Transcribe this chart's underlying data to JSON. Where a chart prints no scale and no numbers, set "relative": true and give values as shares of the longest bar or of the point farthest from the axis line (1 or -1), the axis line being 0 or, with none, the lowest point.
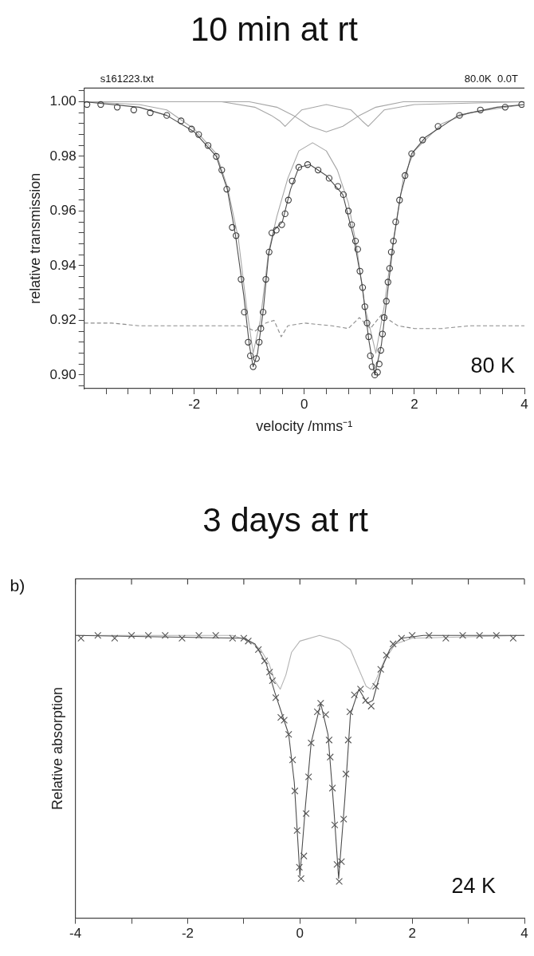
{
  "chart_data": [
    {
      "type": "scatter",
      "title": "10 min at rt",
      "xlabel": "velocity /mms⁻¹",
      "ylabel": "relative transmission",
      "annotations": [
        "s161223.txt",
        "80.0K  0.0T",
        "80 K"
      ],
      "xlim": [
        -4,
        4
      ],
      "ylim": [
        0.895,
        1.005
      ],
      "xticks": [
        {
          "value": -3.6,
          "label": null
        },
        {
          "value": -3.2,
          "label": null
        },
        {
          "value": -2.8,
          "label": null
        },
        {
          "value": -2.4,
          "label": null
        },
        -2,
        {
          "value": -1.6,
          "label": null
        },
        {
          "value": -1.2,
          "label": null
        },
        {
          "value": -0.8,
          "label": null
        },
        {
          "value": -0.4,
          "label": null
        },
        0,
        {
          "value": 0.4,
          "label": null
        },
        {
          "value": 0.8,
          "label": null
        },
        {
          "value": 1.2,
          "label": null
        },
        {
          "value": 1.6,
          "label": null
        },
        2,
        {
          "value": 2.4,
          "label": null
        },
        {
          "value": 2.8,
          "label": null
        },
        {
          "value": 3.2,
          "label": null
        },
        {
          "value": 3.6,
          "label": null
        },
        4
      ],
      "yticks": [
        {
          "value": 0.896,
          "label": null
        },
        {
          "value": 0.9,
          "label": "0.90"
        },
        {
          "value": 0.904,
          "label": null
        },
        {
          "value": 0.908,
          "label": null
        },
        {
          "value": 0.912,
          "label": null
        },
        {
          "value": 0.916,
          "label": null
        },
        {
          "value": 0.92,
          "label": "0.92"
        },
        {
          "value": 0.924,
          "label": null
        },
        {
          "value": 0.928,
          "label": null
        },
        {
          "value": 0.932,
          "label": null
        },
        {
          "value": 0.936,
          "label": null
        },
        {
          "value": 0.94,
          "label": "0.94"
        },
        {
          "value": 0.944,
          "label": null
        },
        {
          "value": 0.948,
          "label": null
        },
        {
          "value": 0.952,
          "label": null
        },
        {
          "value": 0.956,
          "label": null
        },
        {
          "value": 0.96,
          "label": "0.96"
        },
        {
          "value": 0.964,
          "label": null
        },
        {
          "value": 0.968,
          "label": null
        },
        {
          "value": 0.972,
          "label": null
        },
        {
          "value": 0.976,
          "label": null
        },
        {
          "value": 0.98,
          "label": "0.98"
        },
        {
          "value": 0.984,
          "label": null
        },
        {
          "value": 0.988,
          "label": null
        },
        {
          "value": 0.992,
          "label": null
        },
        {
          "value": 0.996,
          "label": null
        },
        {
          "value": 1,
          "label": "1.00"
        },
        {
          "value": 1.004,
          "label": null
        }
      ],
      "series": [
        {
          "type": "line",
          "color": "#a6a6a6",
          "x": [
            -4,
            -3,
            -2.5,
            -2,
            -1.6,
            -1.4,
            -1.2,
            -1.05,
            -0.93,
            -0.8,
            -0.65,
            -0.5,
            -0.3,
            -0.1,
            0.15,
            0.4,
            0.6,
            0.8,
            0.95,
            1.1,
            1.3,
            1.45,
            1.6,
            1.8,
            2,
            2.5,
            3,
            4
          ],
          "values": [
            1,
            0.999,
            0.997,
            0.99,
            0.981,
            0.969,
            0.95,
            0.925,
            0.908,
            0.92,
            0.945,
            0.958,
            0.972,
            0.982,
            0.985,
            0.982,
            0.975,
            0.963,
            0.947,
            0.925,
            0.908,
            0.925,
            0.947,
            0.972,
            0.982,
            0.992,
            0.996,
            0.999
          ]
        },
        {
          "type": "line",
          "color": "#a6a6a6",
          "x": [
            -4,
            -1.5,
            -0.9,
            -0.6,
            -0.45,
            -0.35,
            -0.25,
            -0.05,
            0.4,
            0.85,
            1.05,
            1.16,
            1.26,
            1.45,
            2,
            4
          ],
          "values": [
            1,
            1,
            0.998,
            0.995,
            0.993,
            0.991,
            0.993,
            0.997,
            0.999,
            0.997,
            0.993,
            0.991,
            0.993,
            0.997,
            0.999,
            1
          ]
        },
        {
          "type": "line",
          "color": "#a6a6a6",
          "x": [
            -4,
            -1,
            -0.5,
            -0.2,
            0.1,
            0.4,
            0.7,
            1,
            1.3,
            1.8,
            4
          ],
          "values": [
            1,
            1,
            0.998,
            0.995,
            0.991,
            0.989,
            0.991,
            0.995,
            0.998,
            1,
            1
          ]
        },
        {
          "type": "line",
          "color": "#8c8c8c",
          "line_style": "dashed",
          "x": [
            -4,
            -3.5,
            -3,
            -2.5,
            -2,
            -1.5,
            -1.1,
            -0.9,
            -0.7,
            -0.55,
            -0.42,
            -0.3,
            0,
            0.5,
            0.8,
            1,
            1.2,
            1.4,
            1.7,
            2,
            2.5,
            3,
            3.5,
            4
          ],
          "values": [
            0.919,
            0.919,
            0.918,
            0.918,
            0.918,
            0.918,
            0.918,
            0.916,
            0.919,
            0.92,
            0.914,
            0.918,
            0.919,
            0.918,
            0.917,
            0.921,
            0.917,
            0.922,
            0.918,
            0.917,
            0.917,
            0.918,
            0.918,
            0.918
          ]
        },
        {
          "type": "line",
          "color": "#4d4d4d",
          "x": [
            -4,
            -3,
            -2.5,
            -2,
            -1.6,
            -1.4,
            -1.25,
            -1.1,
            -1,
            -0.93,
            -0.85,
            -0.75,
            -0.65,
            -0.55,
            -0.4,
            -0.25,
            -0.1,
            0.1,
            0.4,
            0.7,
            0.9,
            1.05,
            1.17,
            1.28,
            1.4,
            1.5,
            1.62,
            1.75,
            1.95,
            2.2,
            2.8,
            3.5,
            4
          ],
          "values": [
            1,
            0.998,
            0.995,
            0.989,
            0.98,
            0.968,
            0.951,
            0.929,
            0.911,
            0.903,
            0.908,
            0.923,
            0.944,
            0.953,
            0.956,
            0.968,
            0.976,
            0.977,
            0.973,
            0.966,
            0.95,
            0.933,
            0.913,
            0.9,
            0.911,
            0.928,
            0.949,
            0.966,
            0.981,
            0.987,
            0.995,
            0.998,
            0.999
          ]
        },
        {
          "type": "scatter",
          "marker": "circle",
          "color": "#3a3a3a",
          "x": [
            -3.95,
            -3.7,
            -3.4,
            -3.1,
            -2.8,
            -2.5,
            -2.24,
            -2.05,
            -1.92,
            -1.75,
            -1.6,
            -1.5,
            -1.41,
            -1.31,
            -1.24,
            -1.15,
            -1.09,
            -1.02,
            -0.98,
            -0.93,
            -0.87,
            -0.82,
            -0.79,
            -0.75,
            -0.7,
            -0.64,
            -0.59,
            -0.51,
            -0.41,
            -0.35,
            -0.29,
            -0.22,
            -0.1,
            0.06,
            0.25,
            0.45,
            0.61,
            0.71,
            0.8,
            0.86,
            0.93,
            0.97,
            1.01,
            1.06,
            1.1,
            1.14,
            1.17,
            1.2,
            1.23,
            1.28,
            1.33,
            1.36,
            1.39,
            1.42,
            1.45,
            1.49,
            1.52,
            1.55,
            1.58,
            1.62,
            1.66,
            1.73,
            1.83,
            1.95,
            2.15,
            2.43,
            2.82,
            3.2,
            3.65,
            3.95
          ],
          "values": [
            0.999,
            0.999,
            0.998,
            0.997,
            0.996,
            0.995,
            0.993,
            0.99,
            0.988,
            0.984,
            0.98,
            0.975,
            0.968,
            0.954,
            0.951,
            0.935,
            0.923,
            0.912,
            0.907,
            0.903,
            0.906,
            0.912,
            0.917,
            0.923,
            0.935,
            0.945,
            0.952,
            0.953,
            0.955,
            0.959,
            0.964,
            0.971,
            0.976,
            0.977,
            0.975,
            0.972,
            0.969,
            0.966,
            0.96,
            0.955,
            0.949,
            0.946,
            0.938,
            0.932,
            0.925,
            0.919,
            0.914,
            0.907,
            0.903,
            0.9,
            0.901,
            0.904,
            0.909,
            0.915,
            0.921,
            0.927,
            0.934,
            0.939,
            0.945,
            0.949,
            0.956,
            0.964,
            0.973,
            0.981,
            0.986,
            0.991,
            0.995,
            0.997,
            0.998,
            0.999
          ]
        }
      ]
    },
    {
      "type": "scatter",
      "title": "3 days at rt",
      "ylabel": "Relative absorption",
      "relative": true,
      "tick_labels": "x",
      "annotations": [
        "b)",
        "24 K"
      ],
      "xlim": [
        -4,
        4
      ],
      "xticks": [
        -4,
        {
          "value": -3,
          "label": null
        },
        -2,
        {
          "value": -1,
          "label": null
        },
        0,
        {
          "value": 1,
          "label": null
        },
        2,
        {
          "value": 3,
          "label": null
        },
        4
      ],
      "series": [
        {
          "type": "line",
          "color": "#b3b3b3",
          "x": [
            -4,
            -1.2,
            -0.9,
            -0.7,
            -0.55,
            -0.45,
            -0.35,
            -0.25,
            -0.15,
            0,
            0.35,
            0.7,
            0.9,
            1.05,
            1.18,
            1.26,
            1.35,
            1.5,
            1.7,
            2,
            4
          ],
          "values": [
            1,
            1,
            0.98,
            0.95,
            0.9,
            0.84,
            0.81,
            0.86,
            0.94,
            0.98,
            1,
            0.98,
            0.95,
            0.88,
            0.82,
            0.81,
            0.84,
            0.91,
            0.97,
            0.99,
            1
          ]
        },
        {
          "type": "line",
          "color": "#4d4d4d",
          "x": [
            -4,
            -1,
            -0.8,
            -0.6,
            -0.45,
            -0.3,
            -0.2,
            -0.1,
            0,
            0.1,
            0.2,
            0.37,
            0.5,
            0.6,
            0.69,
            0.8,
            0.9,
            1.05,
            1.2,
            1.3,
            1.45,
            1.6,
            1.8,
            2.2,
            4
          ],
          "values": [
            1,
            0.99,
            0.97,
            0.9,
            0.8,
            0.71,
            0.65,
            0.48,
            0.15,
            0.4,
            0.62,
            0.76,
            0.65,
            0.4,
            0.14,
            0.42,
            0.72,
            0.81,
            0.76,
            0.77,
            0.88,
            0.95,
            0.99,
            1,
            1
          ]
        },
        {
          "type": "scatter",
          "marker": "cross",
          "color": "#555555",
          "x": [
            -3.9,
            -3.6,
            -3.3,
            -3,
            -2.7,
            -2.4,
            -2.1,
            -1.8,
            -1.5,
            -1.2,
            -1,
            -0.92,
            -0.74,
            -0.63,
            -0.54,
            -0.49,
            -0.43,
            -0.34,
            -0.28,
            -0.2,
            -0.13,
            -0.09,
            -0.05,
            -0.01,
            0.02,
            0.07,
            0.11,
            0.155,
            0.2,
            0.31,
            0.37,
            0.46,
            0.52,
            0.54,
            0.58,
            0.62,
            0.66,
            0.7,
            0.74,
            0.78,
            0.82,
            0.86,
            0.89,
            0.97,
            1.08,
            1.17,
            1.27,
            1.35,
            1.44,
            1.54,
            1.66,
            1.81,
            2,
            2.3,
            2.6,
            2.9,
            3.2,
            3.5,
            3.8
          ],
          "values": [
            0.99,
            1,
            0.99,
            1,
            1,
            1,
            0.99,
            1,
            1,
            0.99,
            0.99,
            0.98,
            0.95,
            0.91,
            0.87,
            0.84,
            0.78,
            0.71,
            0.7,
            0.65,
            0.56,
            0.45,
            0.31,
            0.18,
            0.14,
            0.22,
            0.37,
            0.5,
            0.62,
            0.73,
            0.76,
            0.72,
            0.63,
            0.57,
            0.46,
            0.33,
            0.19,
            0.13,
            0.2,
            0.35,
            0.51,
            0.63,
            0.73,
            0.79,
            0.81,
            0.77,
            0.75,
            0.82,
            0.88,
            0.93,
            0.97,
            0.99,
            1,
            1,
            0.99,
            1,
            1,
            1,
            0.99
          ]
        }
      ]
    }
  ]
}
